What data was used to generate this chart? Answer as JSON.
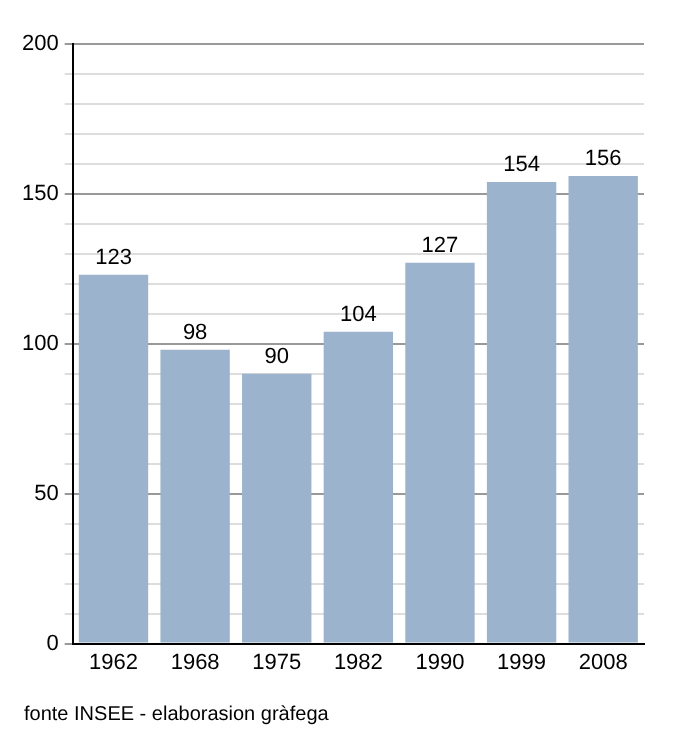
{
  "chart_data": {
    "type": "bar",
    "categories": [
      "1962",
      "1968",
      "1975",
      "1982",
      "1990",
      "1999",
      "2008"
    ],
    "values": [
      123,
      98,
      90,
      104,
      127,
      154,
      156
    ],
    "color": "#9bb3cc",
    "ylim": [
      0,
      200
    ],
    "yticks": [
      0,
      {
        "value": 10,
        "label": null
      },
      {
        "value": 20,
        "label": null
      },
      {
        "value": 30,
        "label": null
      },
      {
        "value": 40,
        "label": null
      },
      50,
      {
        "value": 60,
        "label": null
      },
      {
        "value": 70,
        "label": null
      },
      {
        "value": 80,
        "label": null
      },
      {
        "value": 90,
        "label": null
      },
      100,
      {
        "value": 110,
        "label": null
      },
      {
        "value": 120,
        "label": null
      },
      {
        "value": 130,
        "label": null
      },
      {
        "value": 140,
        "label": null
      },
      150,
      {
        "value": 160,
        "label": null
      },
      {
        "value": 170,
        "label": null
      },
      {
        "value": 180,
        "label": null
      },
      {
        "value": 190,
        "label": null
      },
      200
    ],
    "grid": "y",
    "data_labels": true,
    "annotations": [
      "fonte INSEE - elaborasion gràfega"
    ]
  }
}
